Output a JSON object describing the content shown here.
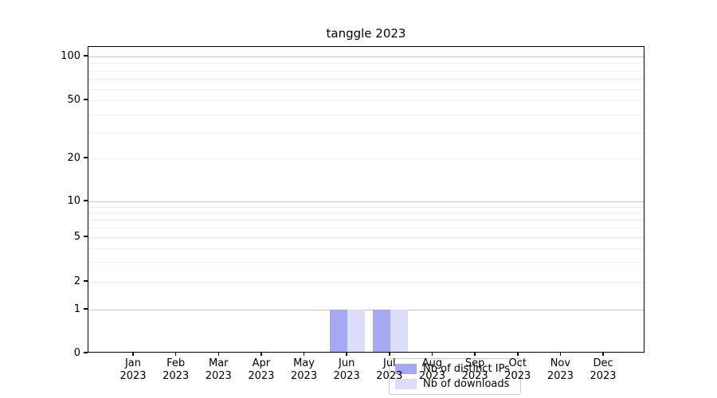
{
  "chart_data": {
    "type": "bar",
    "title": "tanggle 2023",
    "categories": [
      {
        "month": "Jan",
        "year": "2023"
      },
      {
        "month": "Feb",
        "year": "2023"
      },
      {
        "month": "Mar",
        "year": "2023"
      },
      {
        "month": "Apr",
        "year": "2023"
      },
      {
        "month": "May",
        "year": "2023"
      },
      {
        "month": "Jun",
        "year": "2023"
      },
      {
        "month": "Jul",
        "year": "2023"
      },
      {
        "month": "Aug",
        "year": "2023"
      },
      {
        "month": "Sep",
        "year": "2023"
      },
      {
        "month": "Oct",
        "year": "2023"
      },
      {
        "month": "Nov",
        "year": "2023"
      },
      {
        "month": "Dec",
        "year": "2023"
      }
    ],
    "series": [
      {
        "name": "Nb of distinct IPs",
        "color": "#a6a9f2",
        "values": [
          0,
          0,
          0,
          0,
          0,
          1,
          1,
          0,
          0,
          0,
          0,
          0
        ]
      },
      {
        "name": "Nb of downloads",
        "color": "#dcdef9",
        "values": [
          0,
          0,
          0,
          0,
          0,
          1,
          1,
          0,
          0,
          0,
          0,
          0
        ]
      }
    ],
    "xlabel": "",
    "ylabel": "",
    "y_scale": "symlog",
    "y_ticks": [
      0,
      1,
      2,
      5,
      10,
      20,
      50,
      100
    ],
    "y_major_gridlines": [
      1,
      10,
      100
    ],
    "y_minor_gridlines": [
      2,
      3,
      4,
      5,
      6,
      7,
      8,
      9,
      20,
      30,
      40,
      50,
      60,
      70,
      80,
      90
    ],
    "ylim": [
      0,
      120
    ],
    "grid": true,
    "legend_position": "lower center"
  }
}
